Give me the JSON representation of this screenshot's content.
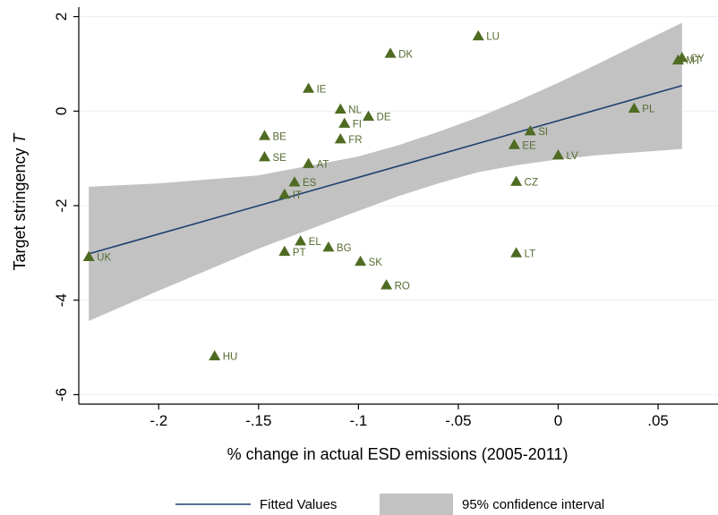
{
  "chart_data": {
    "type": "scatter",
    "xlabel": "% change in actual ESD emissions (2005-2011)",
    "ylabel_main": "Target stringency ",
    "ylabel_var": "T",
    "xlim": [
      -0.24,
      0.08
    ],
    "ylim": [
      -6.2,
      2.2
    ],
    "x_ticks": [
      -0.2,
      -0.15,
      -0.1,
      -0.05,
      0,
      0.05
    ],
    "x_tick_labels": [
      "-.2",
      "-.15",
      "-.1",
      "-.05",
      "0",
      ".05"
    ],
    "y_ticks": [
      -6,
      -4,
      -2,
      0,
      2
    ],
    "y_tick_labels": [
      "-6",
      "-4",
      "-2",
      "0",
      "2"
    ],
    "grid": "horizontal",
    "legend_position": "bottom",
    "legend": [
      {
        "name": "Fitted Values",
        "kind": "line"
      },
      {
        "name": "95% confidence interval",
        "kind": "band"
      }
    ],
    "colors": {
      "points": "#4f6b22",
      "labels": "#556b2f",
      "fit_line": "#1f3f6e",
      "band": "#c2c2c2",
      "grid": "#e8eef4",
      "axis": "#000000"
    },
    "points": [
      {
        "label": "UK",
        "x": -0.235,
        "y": -3.08
      },
      {
        "label": "HU",
        "x": -0.172,
        "y": -5.18
      },
      {
        "label": "BE",
        "x": -0.147,
        "y": -0.52
      },
      {
        "label": "SE",
        "x": -0.147,
        "y": -0.97
      },
      {
        "label": "PT",
        "x": -0.137,
        "y": -2.97
      },
      {
        "label": "IT",
        "x": -0.137,
        "y": -1.76
      },
      {
        "label": "ES",
        "x": -0.132,
        "y": -1.5
      },
      {
        "label": "EL",
        "x": -0.129,
        "y": -2.75
      },
      {
        "label": "IE",
        "x": -0.125,
        "y": 0.48
      },
      {
        "label": "AT",
        "x": -0.125,
        "y": -1.11
      },
      {
        "label": "BG",
        "x": -0.115,
        "y": -2.88
      },
      {
        "label": "NL",
        "x": -0.109,
        "y": 0.04
      },
      {
        "label": "FR",
        "x": -0.109,
        "y": -0.59
      },
      {
        "label": "FI",
        "x": -0.107,
        "y": -0.26
      },
      {
        "label": "SK",
        "x": -0.099,
        "y": -3.18
      },
      {
        "label": "DE",
        "x": -0.095,
        "y": -0.11
      },
      {
        "label": "RO",
        "x": -0.086,
        "y": -3.68
      },
      {
        "label": "DK",
        "x": -0.084,
        "y": 1.22
      },
      {
        "label": "LU",
        "x": -0.04,
        "y": 1.59
      },
      {
        "label": "EE",
        "x": -0.022,
        "y": -0.71
      },
      {
        "label": "CZ",
        "x": -0.021,
        "y": -1.49
      },
      {
        "label": "LT",
        "x": -0.021,
        "y": -3.0
      },
      {
        "label": "SI",
        "x": -0.014,
        "y": -0.42
      },
      {
        "label": "LV",
        "x": 0.0,
        "y": -0.93
      },
      {
        "label": "PL",
        "x": 0.038,
        "y": 0.06
      },
      {
        "label": "MT",
        "x": 0.06,
        "y": 1.08
      },
      {
        "label": "CY",
        "x": 0.062,
        "y": 1.13
      }
    ],
    "fit_line": {
      "x": [
        -0.235,
        0.062
      ],
      "y": [
        -3.02,
        0.54
      ]
    },
    "confidence_band": {
      "x": [
        -0.235,
        -0.2,
        -0.15,
        -0.1,
        -0.08,
        -0.06,
        -0.04,
        -0.02,
        0.0,
        0.02,
        0.04,
        0.062
      ],
      "upper": [
        -1.6,
        -1.53,
        -1.36,
        -0.96,
        -0.72,
        -0.44,
        -0.13,
        0.22,
        0.6,
        1.0,
        1.42,
        1.87
      ],
      "lower": [
        -4.44,
        -3.8,
        -2.91,
        -2.11,
        -1.8,
        -1.53,
        -1.29,
        -1.14,
        -1.02,
        -0.93,
        -0.87,
        -0.8
      ]
    }
  }
}
